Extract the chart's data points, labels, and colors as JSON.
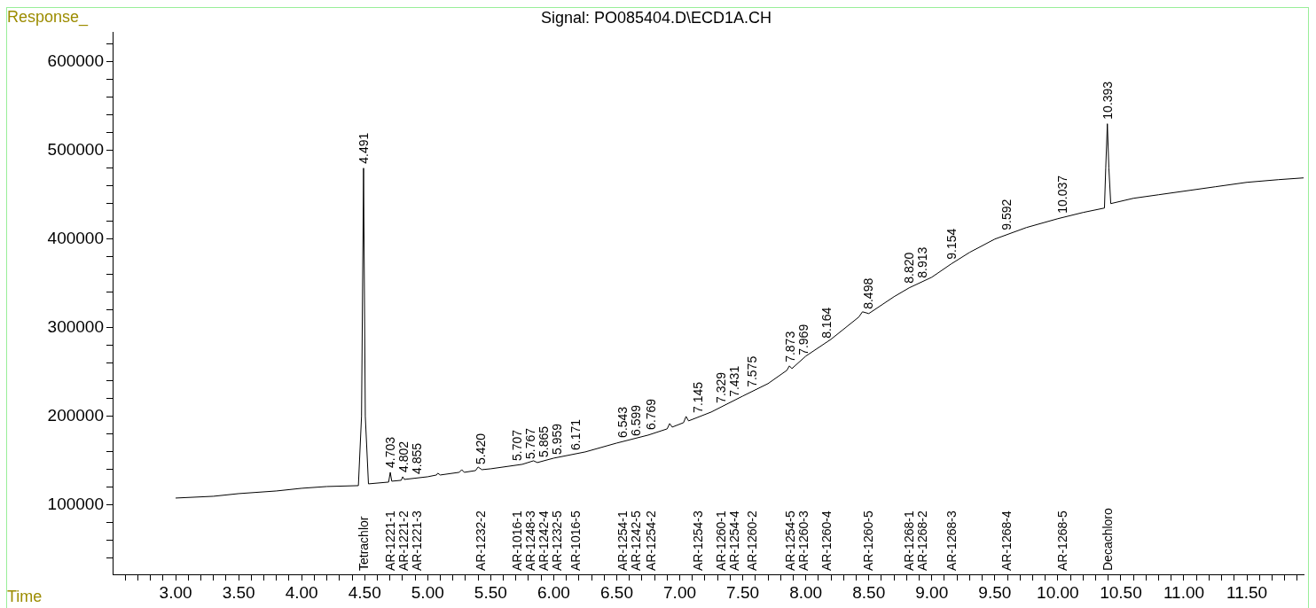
{
  "chart_data": {
    "type": "line",
    "title": "Signal: PO085404.D\\ECD1A.CH",
    "xlabel": "Time",
    "ylabel": "Response_",
    "series": [
      {
        "color": "#000000",
        "x": [
          3.0,
          3.3,
          3.5,
          3.8,
          4.0,
          4.2,
          4.45,
          4.475,
          4.491,
          4.505,
          4.53,
          4.69,
          4.703,
          4.715,
          4.79,
          4.802,
          4.815,
          5.0,
          5.07,
          5.08,
          5.1,
          5.25,
          5.27,
          5.29,
          5.38,
          5.4,
          5.43,
          5.5,
          5.75,
          5.84,
          5.87,
          6.0,
          6.25,
          6.5,
          6.75,
          6.9,
          6.92,
          6.94,
          7.03,
          7.05,
          7.07,
          7.25,
          7.5,
          7.7,
          7.85,
          7.87,
          7.89,
          8.0,
          8.2,
          8.42,
          8.45,
          8.5,
          8.7,
          8.82,
          9.0,
          9.154,
          9.3,
          9.5,
          9.75,
          10.0,
          10.2,
          10.37,
          10.38,
          10.393,
          10.405,
          10.42,
          10.6,
          10.8,
          11.0,
          11.25,
          11.5,
          11.75,
          11.95
        ],
        "values": [
          108000,
          110000,
          113000,
          116000,
          119000,
          121000,
          122000,
          200000,
          480000,
          200000,
          124000,
          126000,
          137000,
          127000,
          128000,
          132000,
          129000,
          132000,
          134000,
          136000,
          134000,
          137000,
          140000,
          137000,
          139000,
          143000,
          140000,
          141000,
          146000,
          150000,
          148000,
          153000,
          160000,
          170000,
          179000,
          186000,
          192000,
          188000,
          193000,
          200000,
          195000,
          205000,
          223000,
          237000,
          252000,
          257000,
          254000,
          268000,
          287000,
          312000,
          318000,
          316000,
          335000,
          345000,
          357000,
          372000,
          385000,
          400000,
          413000,
          423000,
          430000,
          435000,
          480000,
          530000,
          480000,
          440000,
          446000,
          450000,
          454000,
          459000,
          464000,
          467000,
          469000
        ]
      }
    ],
    "xlim": [
      2.5,
      11.95
    ],
    "ylim": [
      22000,
      633000
    ],
    "xticks": [
      {
        "value": 2.6,
        "label": null
      },
      {
        "value": 2.7,
        "label": null
      },
      {
        "value": 2.8,
        "label": null
      },
      {
        "value": 2.9,
        "label": null
      },
      {
        "value": 3,
        "label": "3.00"
      },
      {
        "value": 3.1,
        "label": null
      },
      {
        "value": 3.2,
        "label": null
      },
      {
        "value": 3.3,
        "label": null
      },
      {
        "value": 3.4,
        "label": null
      },
      {
        "value": 3.5,
        "label": "3.50"
      },
      {
        "value": 3.6,
        "label": null
      },
      {
        "value": 3.7,
        "label": null
      },
      {
        "value": 3.8,
        "label": null
      },
      {
        "value": 3.9,
        "label": null
      },
      {
        "value": 4,
        "label": "4.00"
      },
      {
        "value": 4.1,
        "label": null
      },
      {
        "value": 4.2,
        "label": null
      },
      {
        "value": 4.3,
        "label": null
      },
      {
        "value": 4.4,
        "label": null
      },
      {
        "value": 4.5,
        "label": "4.50"
      },
      {
        "value": 4.6,
        "label": null
      },
      {
        "value": 4.7,
        "label": null
      },
      {
        "value": 4.8,
        "label": null
      },
      {
        "value": 4.9,
        "label": null
      },
      {
        "value": 5,
        "label": "5.00"
      },
      {
        "value": 5.1,
        "label": null
      },
      {
        "value": 5.2,
        "label": null
      },
      {
        "value": 5.3,
        "label": null
      },
      {
        "value": 5.4,
        "label": null
      },
      {
        "value": 5.5,
        "label": "5.50"
      },
      {
        "value": 5.6,
        "label": null
      },
      {
        "value": 5.7,
        "label": null
      },
      {
        "value": 5.8,
        "label": null
      },
      {
        "value": 5.9,
        "label": null
      },
      {
        "value": 6,
        "label": "6.00"
      },
      {
        "value": 6.1,
        "label": null
      },
      {
        "value": 6.2,
        "label": null
      },
      {
        "value": 6.3,
        "label": null
      },
      {
        "value": 6.4,
        "label": null
      },
      {
        "value": 6.5,
        "label": "6.50"
      },
      {
        "value": 6.6,
        "label": null
      },
      {
        "value": 6.7,
        "label": null
      },
      {
        "value": 6.8,
        "label": null
      },
      {
        "value": 6.9,
        "label": null
      },
      {
        "value": 7,
        "label": "7.00"
      },
      {
        "value": 7.1,
        "label": null
      },
      {
        "value": 7.2,
        "label": null
      },
      {
        "value": 7.3,
        "label": null
      },
      {
        "value": 7.4,
        "label": null
      },
      {
        "value": 7.5,
        "label": "7.50"
      },
      {
        "value": 7.6,
        "label": null
      },
      {
        "value": 7.7,
        "label": null
      },
      {
        "value": 7.8,
        "label": null
      },
      {
        "value": 7.9,
        "label": null
      },
      {
        "value": 8,
        "label": "8.00"
      },
      {
        "value": 8.1,
        "label": null
      },
      {
        "value": 8.2,
        "label": null
      },
      {
        "value": 8.3,
        "label": null
      },
      {
        "value": 8.4,
        "label": null
      },
      {
        "value": 8.5,
        "label": "8.50"
      },
      {
        "value": 8.6,
        "label": null
      },
      {
        "value": 8.7,
        "label": null
      },
      {
        "value": 8.8,
        "label": null
      },
      {
        "value": 8.9,
        "label": null
      },
      {
        "value": 9,
        "label": "9.00"
      },
      {
        "value": 9.1,
        "label": null
      },
      {
        "value": 9.2,
        "label": null
      },
      {
        "value": 9.3,
        "label": null
      },
      {
        "value": 9.4,
        "label": null
      },
      {
        "value": 9.5,
        "label": "9.50"
      },
      {
        "value": 9.6,
        "label": null
      },
      {
        "value": 9.7,
        "label": null
      },
      {
        "value": 9.8,
        "label": null
      },
      {
        "value": 9.9,
        "label": null
      },
      {
        "value": 10,
        "label": "10.00"
      },
      {
        "value": 10.1,
        "label": null
      },
      {
        "value": 10.2,
        "label": null
      },
      {
        "value": 10.3,
        "label": null
      },
      {
        "value": 10.4,
        "label": null
      },
      {
        "value": 10.5,
        "label": "10.50"
      },
      {
        "value": 10.6,
        "label": null
      },
      {
        "value": 10.7,
        "label": null
      },
      {
        "value": 10.8,
        "label": null
      },
      {
        "value": 10.9,
        "label": null
      },
      {
        "value": 11,
        "label": "11.00"
      },
      {
        "value": 11.1,
        "label": null
      },
      {
        "value": 11.2,
        "label": null
      },
      {
        "value": 11.3,
        "label": null
      },
      {
        "value": 11.4,
        "label": null
      },
      {
        "value": 11.5,
        "label": "11.50"
      },
      {
        "value": 11.6,
        "label": null
      },
      {
        "value": 11.7,
        "label": null
      },
      {
        "value": 11.8,
        "label": null
      },
      {
        "value": 11.9,
        "label": null
      }
    ],
    "yticks": [
      {
        "value": 40000,
        "label": null
      },
      {
        "value": 60000,
        "label": null
      },
      {
        "value": 80000,
        "label": null
      },
      100000,
      {
        "value": 120000,
        "label": null
      },
      {
        "value": 140000,
        "label": null
      },
      {
        "value": 160000,
        "label": null
      },
      {
        "value": 180000,
        "label": null
      },
      200000,
      {
        "value": 220000,
        "label": null
      },
      {
        "value": 240000,
        "label": null
      },
      {
        "value": 260000,
        "label": null
      },
      {
        "value": 280000,
        "label": null
      },
      300000,
      {
        "value": 320000,
        "label": null
      },
      {
        "value": 340000,
        "label": null
      },
      {
        "value": 360000,
        "label": null
      },
      {
        "value": 380000,
        "label": null
      },
      400000,
      {
        "value": 420000,
        "label": null
      },
      {
        "value": 440000,
        "label": null
      },
      {
        "value": 460000,
        "label": null
      },
      {
        "value": 480000,
        "label": null
      },
      500000,
      {
        "value": 520000,
        "label": null
      },
      {
        "value": 540000,
        "label": null
      },
      {
        "value": 560000,
        "label": null
      },
      {
        "value": 580000,
        "label": null
      },
      600000,
      {
        "value": 620000,
        "label": null
      }
    ],
    "annotations": [
      {
        "text": "4.491",
        "x": 4.491,
        "y": 480000
      },
      {
        "text": "4.703",
        "x": 4.703,
        "y": 137000
      },
      {
        "text": "4.802",
        "x": 4.802,
        "y": 132000
      },
      {
        "text": "4.855",
        "x": 4.855,
        "y": 130000
      },
      {
        "text": "5.420",
        "x": 5.42,
        "y": 141000
      },
      {
        "text": "5.707",
        "x": 5.707,
        "y": 145000
      },
      {
        "text": "5.767",
        "x": 5.767,
        "y": 147000
      },
      {
        "text": "5.865",
        "x": 5.865,
        "y": 149000
      },
      {
        "text": "5.959",
        "x": 5.959,
        "y": 152000
      },
      {
        "text": "6.171",
        "x": 6.171,
        "y": 157000
      },
      {
        "text": "6.543",
        "x": 6.543,
        "y": 171000
      },
      {
        "text": "6.599",
        "x": 6.599,
        "y": 173000
      },
      {
        "text": "6.769",
        "x": 6.769,
        "y": 180000
      },
      {
        "text": "7.145",
        "x": 7.145,
        "y": 199000
      },
      {
        "text": "7.329",
        "x": 7.329,
        "y": 210000
      },
      {
        "text": "7.431",
        "x": 7.431,
        "y": 217000
      },
      {
        "text": "7.575",
        "x": 7.575,
        "y": 228000
      },
      {
        "text": "7.873",
        "x": 7.873,
        "y": 256000
      },
      {
        "text": "7.969",
        "x": 7.969,
        "y": 264000
      },
      {
        "text": "8.164",
        "x": 8.164,
        "y": 283000
      },
      {
        "text": "8.498",
        "x": 8.498,
        "y": 316000
      },
      {
        "text": "8.820",
        "x": 8.82,
        "y": 345000
      },
      {
        "text": "8.913",
        "x": 8.913,
        "y": 351000
      },
      {
        "text": "9.154",
        "x": 9.154,
        "y": 372000
      },
      {
        "text": "9.592",
        "x": 9.592,
        "y": 405000
      },
      {
        "text": "10.037",
        "x": 10.037,
        "y": 424000
      },
      {
        "text": "10.393",
        "x": 10.393,
        "y": 530000
      },
      "Tetrachlor",
      "AR-1221-1",
      "AR-1221-2",
      "AR-1221-3",
      "AR-1232-2",
      "AR-1016-1",
      "AR-1248-3",
      "AR-1242-4",
      "AR-1232-5",
      "AR-1016-5",
      "AR-1254-1",
      "AR-1242-5",
      "AR-1254-2",
      "AR-1254-3",
      "AR-1260-1",
      "AR-1254-4",
      "AR-1260-2",
      "AR-1254-5",
      "AR-1260-3",
      "AR-1260-4",
      "AR-1260-5",
      "AR-1268-1",
      "AR-1268-2",
      "AR-1268-3",
      "AR-1268-4",
      "AR-1268-5",
      "Decachloro"
    ],
    "grid": false,
    "legend": false,
    "marker": "none",
    "line_style": "solid"
  }
}
